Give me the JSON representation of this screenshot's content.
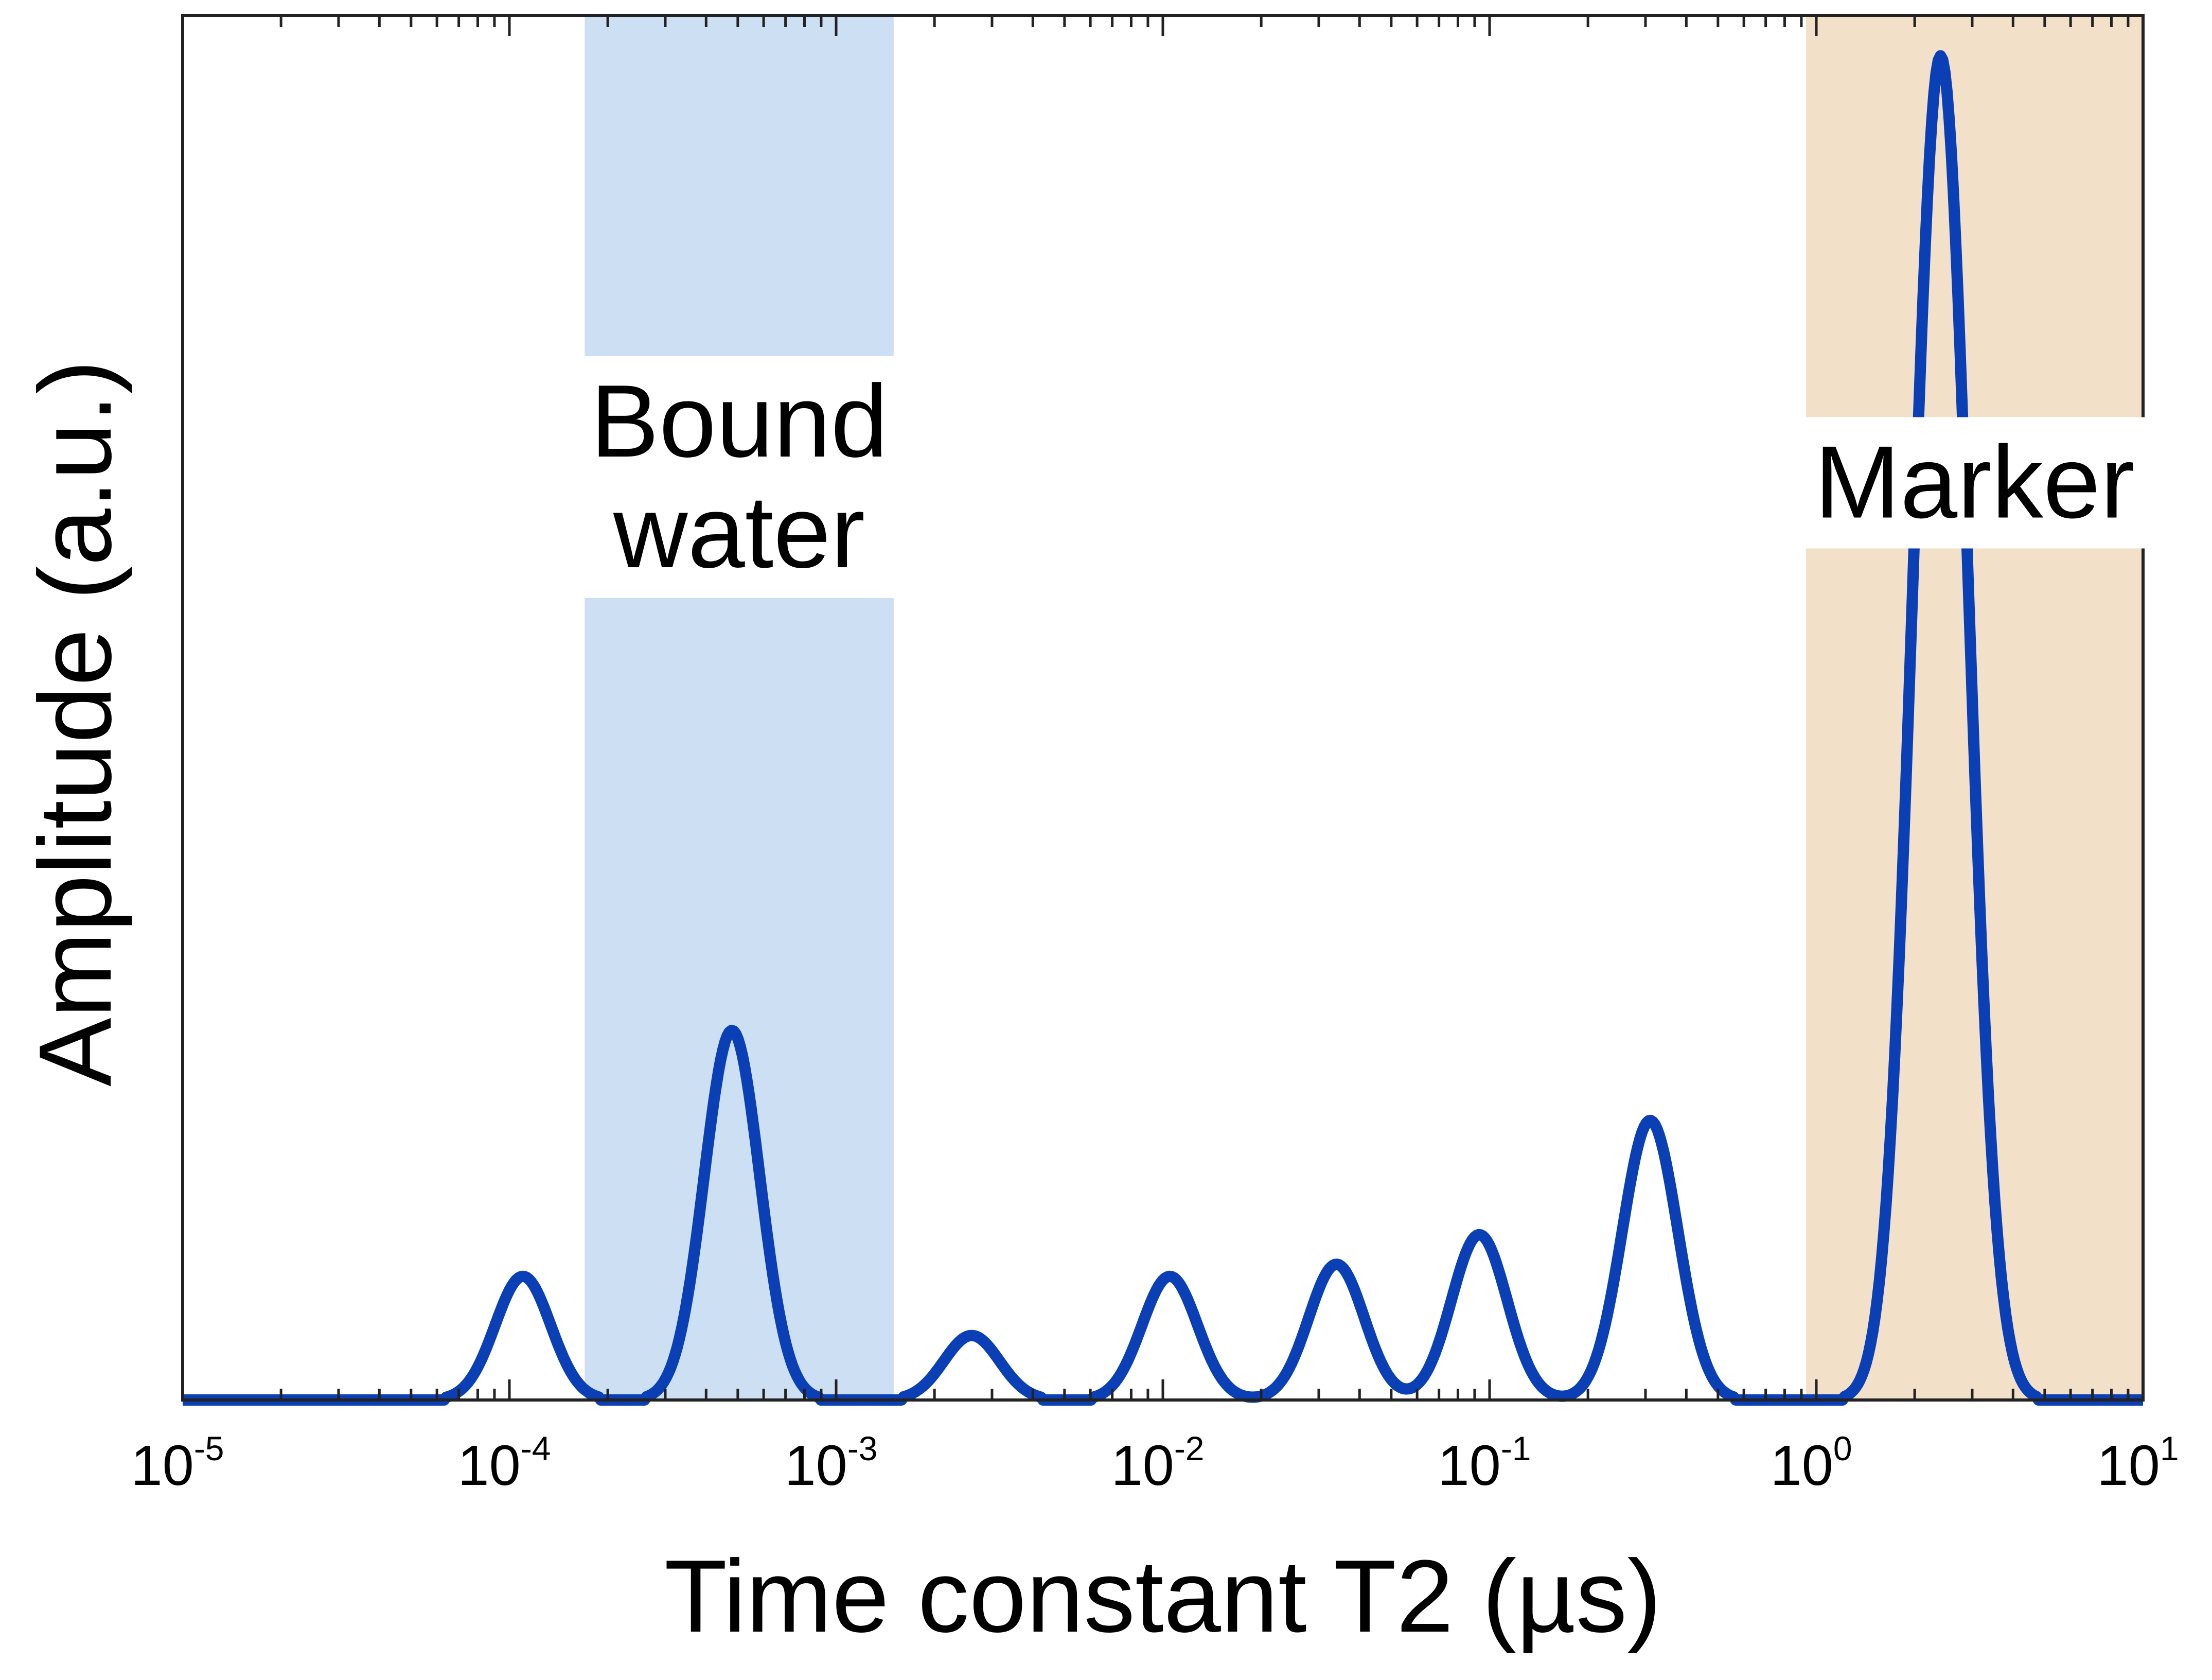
{
  "chart_data": {
    "type": "line",
    "xlabel": "Time constant T2 (µs)",
    "ylabel": "Amplitude (a.u.)",
    "x_scale": "log",
    "xlim": [
      1e-05,
      10
    ],
    "ylim": [
      0,
      1.03
    ],
    "x_tick_labels": [
      {
        "base": "10",
        "exp": "-5"
      },
      {
        "base": "10",
        "exp": "-4"
      },
      {
        "base": "10",
        "exp": "-3"
      },
      {
        "base": "10",
        "exp": "-2"
      },
      {
        "base": "10",
        "exp": "-1"
      },
      {
        "base": "10",
        "exp": "0"
      },
      {
        "base": "10",
        "exp": "1"
      }
    ],
    "y_ticks_shown": false,
    "grid": false,
    "regions": [
      {
        "label_lines": [
          "Bound",
          "water"
        ],
        "x_range": [
          0.00017,
          0.0015
        ],
        "color": "#cddff3"
      },
      {
        "label_lines": [
          "Marker"
        ],
        "x_range": [
          0.93,
          10
        ],
        "color": "#f2e0c9"
      }
    ],
    "series": [
      {
        "color": "#0a3fb5",
        "peaks": [
          {
            "x": 0.00011,
            "y": 0.092
          },
          {
            "x": 0.00048,
            "y": 0.275
          },
          {
            "x": 0.0026,
            "y": 0.048
          },
          {
            "x": 0.0105,
            "y": 0.092
          },
          {
            "x": 0.034,
            "y": 0.101
          },
          {
            "x": 0.093,
            "y": 0.123
          },
          {
            "x": 0.31,
            "y": 0.208
          },
          {
            "x": 2.4,
            "y": 1.0
          }
        ]
      }
    ]
  }
}
